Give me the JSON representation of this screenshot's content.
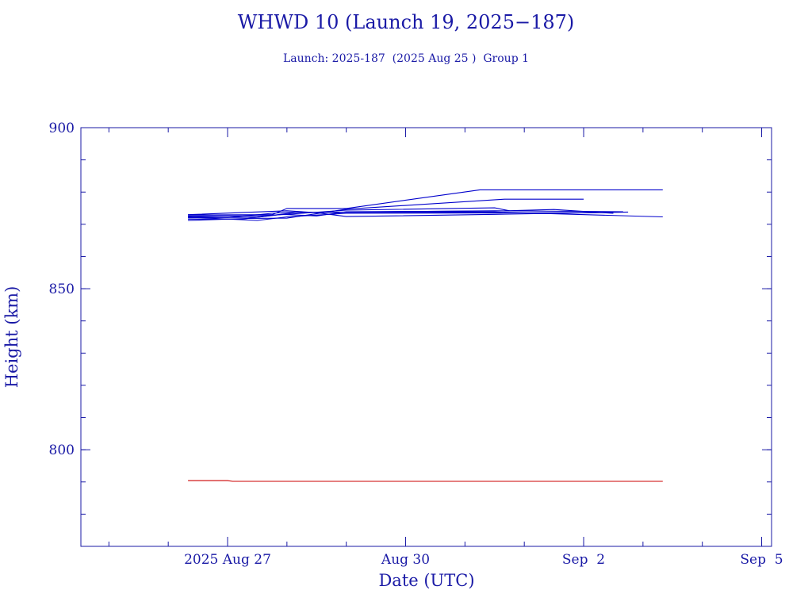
{
  "chart_data": {
    "type": "line",
    "title": "WHWD 10 (Launch 19, 2025−187)",
    "subtitle": "Launch: 2025-187  (2025 Aug 25 )  Group 1",
    "xlabel": "Date (UTC)",
    "ylabel": "Height (km)",
    "x_tick_labels": [
      "2025 Aug 27",
      "Aug 30",
      "Sep  2",
      "Sep  5"
    ],
    "x_tick_dates": [
      "2025-08-27",
      "2025-08-30",
      "2025-09-02",
      "2025-09-05"
    ],
    "xlim": [
      "2025-08-24T12:40",
      "2025-09-05T04:00"
    ],
    "y_tick_labels": [
      "800",
      "850",
      "900"
    ],
    "y_ticks": [
      800,
      850,
      900
    ],
    "ylim": [
      770,
      900
    ],
    "grid": false,
    "colors": {
      "axes": "#1a1aa6",
      "series_blue": "#0000cc",
      "series_red": "#cc0000"
    },
    "series": [
      {
        "color": "#0000cc",
        "points": [
          [
            "2025-08-26T08:00",
            872.4
          ],
          [
            "2025-08-27T00:00",
            872.1
          ],
          [
            "2025-08-27T18:00",
            873.4
          ],
          [
            "2025-08-28T00:00",
            873.7
          ],
          [
            "2025-08-31T12:00",
            873.8
          ],
          [
            "2025-09-03T08:00",
            872.3
          ]
        ]
      },
      {
        "color": "#0000cc",
        "points": [
          [
            "2025-08-26T08:00",
            871.6
          ],
          [
            "2025-08-27T06:00",
            871.6
          ],
          [
            "2025-08-27T22:00",
            873.1
          ],
          [
            "2025-08-28T12:00",
            872.6
          ],
          [
            "2025-08-29T00:00",
            873.9
          ],
          [
            "2025-08-31T12:00",
            874.1
          ],
          [
            "2025-09-01T12:00",
            874.6
          ],
          [
            "2025-09-02T12:00",
            873.4
          ]
        ]
      },
      {
        "color": "#0000cc",
        "points": [
          [
            "2025-08-26T08:00",
            872.6
          ],
          [
            "2025-08-27T12:00",
            872.6
          ],
          [
            "2025-08-28T00:00",
            873.1
          ],
          [
            "2025-08-29T00:00",
            874.4
          ],
          [
            "2025-08-31T12:00",
            875.1
          ],
          [
            "2025-08-31T18:00",
            874.2
          ]
        ]
      },
      {
        "color": "#0000cc",
        "points": [
          [
            "2025-08-26T08:00",
            871.2
          ],
          [
            "2025-08-27T08:00",
            871.8
          ],
          [
            "2025-08-28T00:00",
            871.9
          ],
          [
            "2025-08-29T00:00",
            874.7
          ],
          [
            "2025-08-31T16:00",
            877.8
          ],
          [
            "2025-09-02T00:00",
            877.8
          ]
        ]
      },
      {
        "color": "#0000cc",
        "points": [
          [
            "2025-08-26T08:00",
            872.9
          ],
          [
            "2025-08-27T18:00",
            873.0
          ],
          [
            "2025-08-28T00:00",
            874.9
          ],
          [
            "2025-08-29T00:00",
            874.9
          ],
          [
            "2025-08-31T06:00",
            880.7
          ],
          [
            "2025-09-03T08:00",
            880.7
          ]
        ]
      },
      {
        "color": "#0000cc",
        "points": [
          [
            "2025-08-26T08:00",
            873.0
          ],
          [
            "2025-08-28T00:00",
            874.2
          ],
          [
            "2025-08-28T12:00",
            873.6
          ],
          [
            "2025-08-29T00:00",
            872.4
          ],
          [
            "2025-08-31T12:00",
            873.1
          ],
          [
            "2025-09-02T12:00",
            873.7
          ],
          [
            "2025-09-02T18:00",
            873.8
          ]
        ]
      },
      {
        "color": "#0000cc",
        "points": [
          [
            "2025-08-26T08:00",
            872.0
          ],
          [
            "2025-08-27T12:00",
            872.2
          ],
          [
            "2025-08-28T04:00",
            873.7
          ],
          [
            "2025-08-29T00:00",
            873.8
          ],
          [
            "2025-08-31T12:00",
            874.2
          ],
          [
            "2025-09-02T16:00",
            873.9
          ]
        ]
      },
      {
        "color": "#0000cc",
        "points": [
          [
            "2025-08-26T08:00",
            872.2
          ],
          [
            "2025-08-27T12:00",
            871.2
          ],
          [
            "2025-08-28T00:00",
            872.3
          ],
          [
            "2025-08-29T00:00",
            873.4
          ],
          [
            "2025-08-31T12:00",
            873.5
          ],
          [
            "2025-09-02T12:00",
            873.6
          ]
        ]
      },
      {
        "color": "#cc0000",
        "points": [
          [
            "2025-08-26T08:00",
            790.4
          ],
          [
            "2025-08-27T00:00",
            790.4
          ],
          [
            "2025-08-27T02:00",
            790.2
          ],
          [
            "2025-09-03T08:00",
            790.2
          ]
        ]
      }
    ]
  }
}
